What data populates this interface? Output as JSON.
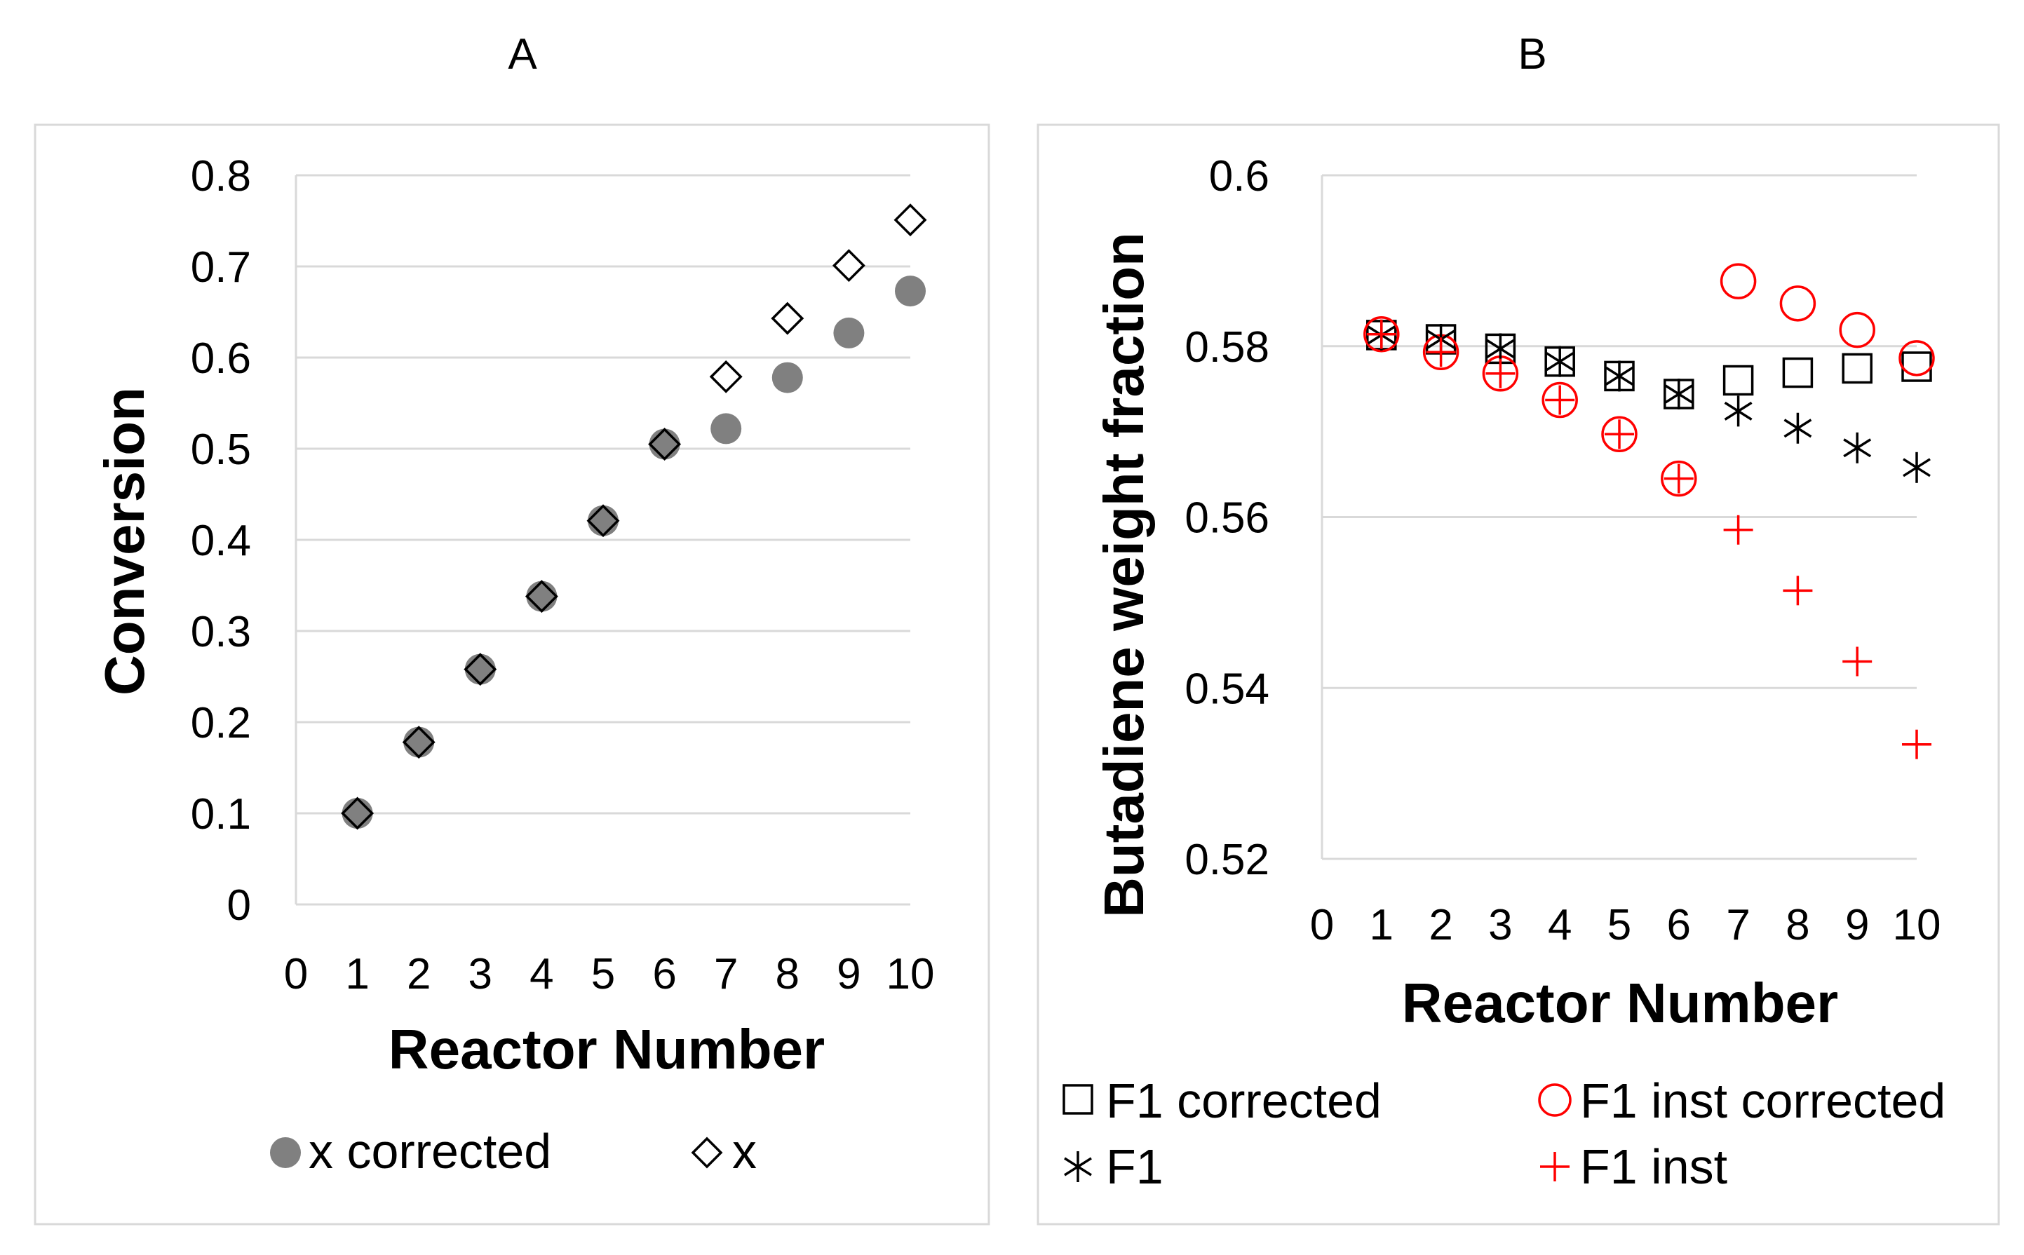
{
  "chart_data": [
    {
      "type": "scatter",
      "panel_label": "A",
      "xlabel": "Reactor Number",
      "ylabel": "Conversion",
      "xlim": [
        0,
        10
      ],
      "ylim": [
        0,
        0.8
      ],
      "x_ticks": [
        "0",
        "1",
        "2",
        "3",
        "4",
        "5",
        "6",
        "7",
        "8",
        "9",
        "10"
      ],
      "y_ticks": [
        "0",
        "0.1",
        "0.2",
        "0.3",
        "0.4",
        "0.5",
        "0.6",
        "0.7",
        "0.8"
      ],
      "grid": true,
      "legend_position": "bottom",
      "series": [
        {
          "name": "x corrected",
          "marker": "filled-circle",
          "color": "#808080",
          "x": [
            1,
            2,
            3,
            4,
            5,
            6,
            7,
            8,
            9,
            10
          ],
          "y": [
            0.1,
            0.178,
            0.258,
            0.338,
            0.421,
            0.505,
            0.522,
            0.578,
            0.627,
            0.673
          ]
        },
        {
          "name": "x",
          "marker": "open-diamond",
          "color": "#000000",
          "x": [
            1,
            2,
            3,
            4,
            5,
            6,
            7,
            8,
            9,
            10
          ],
          "y": [
            0.1,
            0.178,
            0.258,
            0.338,
            0.421,
            0.505,
            0.579,
            0.643,
            0.701,
            0.751
          ]
        }
      ]
    },
    {
      "type": "scatter",
      "panel_label": "B",
      "xlabel": "Reactor Number",
      "ylabel": "Butadiene weight fraction",
      "xlim": [
        0,
        10
      ],
      "ylim": [
        0.52,
        0.6
      ],
      "x_ticks": [
        "0",
        "1",
        "2",
        "3",
        "4",
        "5",
        "6",
        "7",
        "8",
        "9",
        "10"
      ],
      "y_ticks": [
        "0.52",
        "0.54",
        "0.56",
        "0.58",
        "0.6"
      ],
      "grid": true,
      "legend_position": "bottom",
      "series": [
        {
          "name": "F1 corrected",
          "marker": "open-square",
          "color": "#000000",
          "x": [
            1,
            2,
            3,
            4,
            5,
            6,
            7,
            8,
            9,
            10
          ],
          "y": [
            0.5813,
            0.5808,
            0.5797,
            0.5782,
            0.5765,
            0.5744,
            0.576,
            0.5769,
            0.5774,
            0.5776
          ]
        },
        {
          "name": "F1 inst corrected",
          "marker": "open-circle",
          "color": "#ff0000",
          "x": [
            1,
            2,
            3,
            4,
            5,
            6,
            7,
            8,
            9,
            10
          ],
          "y": [
            0.5814,
            0.5793,
            0.5768,
            0.5737,
            0.5697,
            0.5645,
            0.5876,
            0.585,
            0.5819,
            0.5786
          ]
        },
        {
          "name": "F1",
          "marker": "asterisk",
          "color": "#000000",
          "x": [
            1,
            2,
            3,
            4,
            5,
            6,
            7,
            8,
            9,
            10
          ],
          "y": [
            0.5813,
            0.5808,
            0.5797,
            0.5782,
            0.5765,
            0.5744,
            0.5724,
            0.5704,
            0.5681,
            0.5658
          ]
        },
        {
          "name": "F1 inst",
          "marker": "plus",
          "color": "#ff0000",
          "x": [
            1,
            2,
            3,
            4,
            5,
            6,
            7,
            8,
            9,
            10
          ],
          "y": [
            0.5814,
            0.5793,
            0.5768,
            0.5737,
            0.5697,
            0.5645,
            0.5585,
            0.5514,
            0.5431,
            0.5334
          ]
        }
      ]
    }
  ]
}
